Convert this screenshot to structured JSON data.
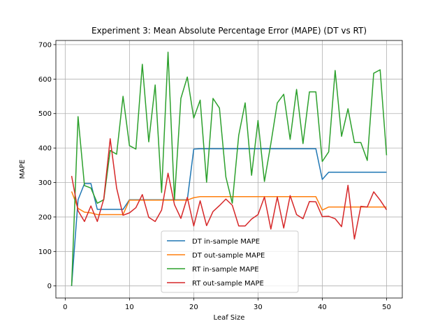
{
  "chart_data": {
    "type": "line",
    "title": "Experiment 3: Mean Absolute Percentage Error (MAPE) (DT vs RT)",
    "xlabel": "Leaf Size",
    "ylabel": "MAPE",
    "xlim": [
      -1.45,
      52.45
    ],
    "ylim": [
      -35,
      712
    ],
    "xticks": [
      0,
      10,
      20,
      30,
      40,
      50
    ],
    "yticks": [
      0,
      100,
      200,
      300,
      400,
      500,
      600,
      700
    ],
    "grid": true,
    "legend_position": "lower-center",
    "x": [
      1,
      2,
      3,
      4,
      5,
      6,
      7,
      8,
      9,
      10,
      11,
      12,
      13,
      14,
      15,
      16,
      17,
      18,
      19,
      20,
      21,
      22,
      23,
      24,
      25,
      26,
      27,
      28,
      29,
      30,
      31,
      32,
      33,
      34,
      35,
      36,
      37,
      38,
      39,
      40,
      41,
      42,
      43,
      44,
      45,
      46,
      47,
      48,
      49,
      50
    ],
    "series": [
      {
        "name": "DT in-sample MAPE",
        "color": "#1f77b4",
        "values": [
          0,
          250,
          297,
          297,
          222,
          222,
          222,
          222,
          222,
          250,
          250,
          250,
          250,
          250,
          250,
          250,
          250,
          250,
          250,
          397,
          398,
          398,
          398,
          398,
          398,
          398,
          398,
          398,
          398,
          398,
          398,
          398,
          398,
          398,
          398,
          398,
          398,
          398,
          398,
          309,
          330,
          330,
          330,
          330,
          330,
          330,
          330,
          330,
          330,
          330
        ]
      },
      {
        "name": "DT out-sample MAPE",
        "color": "#ff7f0e",
        "values": [
          274,
          225,
          214,
          212,
          207,
          207,
          207,
          207,
          207,
          249,
          249,
          249,
          249,
          249,
          249,
          249,
          249,
          249,
          249,
          256,
          259,
          259,
          259,
          259,
          259,
          259,
          259,
          259,
          259,
          259,
          259,
          259,
          259,
          259,
          259,
          259,
          259,
          259,
          259,
          220,
          229,
          229,
          229,
          229,
          229,
          229,
          229,
          229,
          229,
          229
        ]
      },
      {
        "name": "RT in-sample MAPE",
        "color": "#2ca02c",
        "values": [
          0,
          491,
          291,
          284,
          240,
          250,
          393,
          382,
          550,
          407,
          397,
          643,
          418,
          583,
          271,
          678,
          250,
          544,
          606,
          487,
          539,
          301,
          544,
          516,
          316,
          240,
          437,
          531,
          321,
          480,
          303,
          413,
          531,
          556,
          425,
          570,
          413,
          563,
          563,
          361,
          389,
          625,
          434,
          514,
          416,
          416,
          364,
          617,
          627,
          379
        ]
      },
      {
        "name": "RT out-sample MAPE",
        "color": "#d62728",
        "values": [
          319,
          218,
          187,
          232,
          187,
          252,
          427,
          284,
          205,
          212,
          227,
          265,
          199,
          187,
          220,
          327,
          236,
          196,
          257,
          174,
          247,
          175,
          216,
          233,
          252,
          234,
          174,
          174,
          194,
          207,
          258,
          165,
          258,
          168,
          262,
          207,
          195,
          245,
          244,
          201,
          202,
          195,
          172,
          292,
          136,
          231,
          229,
          273,
          249,
          221
        ]
      }
    ]
  }
}
